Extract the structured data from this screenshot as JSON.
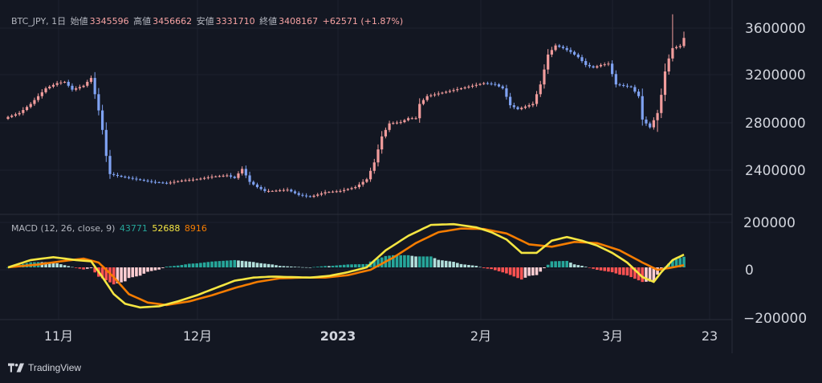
{
  "price_legend": {
    "symbol": "BTC_JPY, 1日",
    "open_label": "始値",
    "open": "3345596",
    "high_label": "高値",
    "high": "3456662",
    "low_label": "安値",
    "low": "3331710",
    "close_label": "終値",
    "close": "3408167",
    "change": "+62571 (+1.87%)"
  },
  "macd_legend": {
    "label": "MACD (12, 26, close, 9)",
    "hist": "43771",
    "macd": "52688",
    "signal": "8916"
  },
  "brand": "TradingView",
  "colors": {
    "background": "#131722",
    "up": "#f19c9c",
    "down": "#7fa2f2",
    "macd_line": "#f5e642",
    "signal_line": "#f57c00",
    "hist_pos_strong": "#26a69a",
    "hist_pos_weak": "#b2dfdb",
    "hist_neg_strong": "#ff5252",
    "hist_neg_weak": "#ffcdd2"
  },
  "chart_data": [
    {
      "type": "candlestick",
      "title": "BTC_JPY, 1日",
      "ylim": [
        2050000,
        3700000
      ],
      "y_ticks": [
        "3600000",
        "3200000",
        "2800000",
        "2400000"
      ],
      "x_tick_labels": [
        "11月",
        "12月",
        "2023",
        "2月",
        "3月",
        "23"
      ],
      "anchors": [
        [
          0,
          2800000
        ],
        [
          3,
          2830000
        ],
        [
          6,
          2900000
        ],
        [
          8,
          2960000
        ],
        [
          10,
          3020000
        ],
        [
          13,
          3060000
        ],
        [
          15,
          3070000
        ],
        [
          17,
          3010000
        ],
        [
          20,
          3040000
        ],
        [
          22,
          3100000
        ],
        [
          24,
          2850000
        ],
        [
          25,
          2700000
        ],
        [
          26,
          2500000
        ],
        [
          27,
          2360000
        ],
        [
          30,
          2340000
        ],
        [
          34,
          2320000
        ],
        [
          38,
          2300000
        ],
        [
          42,
          2290000
        ],
        [
          46,
          2310000
        ],
        [
          50,
          2320000
        ],
        [
          54,
          2340000
        ],
        [
          58,
          2350000
        ],
        [
          60,
          2330000
        ],
        [
          62,
          2400000
        ],
        [
          64,
          2300000
        ],
        [
          66,
          2260000
        ],
        [
          68,
          2230000
        ],
        [
          70,
          2230000
        ],
        [
          74,
          2240000
        ],
        [
          77,
          2200000
        ],
        [
          80,
          2185000
        ],
        [
          84,
          2220000
        ],
        [
          88,
          2230000
        ],
        [
          92,
          2260000
        ],
        [
          95,
          2320000
        ],
        [
          97,
          2450000
        ],
        [
          99,
          2650000
        ],
        [
          101,
          2750000
        ],
        [
          104,
          2760000
        ],
        [
          106,
          2790000
        ],
        [
          108,
          2790000
        ],
        [
          109,
          2900000
        ],
        [
          111,
          2960000
        ],
        [
          114,
          2980000
        ],
        [
          117,
          3000000
        ],
        [
          120,
          3020000
        ],
        [
          123,
          3040000
        ],
        [
          126,
          3060000
        ],
        [
          129,
          3050000
        ],
        [
          131,
          3020000
        ],
        [
          133,
          2890000
        ],
        [
          135,
          2860000
        ],
        [
          137,
          2880000
        ],
        [
          139,
          2900000
        ],
        [
          141,
          3050000
        ],
        [
          143,
          3280000
        ],
        [
          145,
          3350000
        ],
        [
          147,
          3330000
        ],
        [
          149,
          3300000
        ],
        [
          151,
          3260000
        ],
        [
          153,
          3200000
        ],
        [
          155,
          3180000
        ],
        [
          157,
          3200000
        ],
        [
          159,
          3210000
        ],
        [
          161,
          3050000
        ],
        [
          163,
          3040000
        ],
        [
          165,
          3030000
        ],
        [
          167,
          2960000
        ],
        [
          168,
          2780000
        ],
        [
          170,
          2720000
        ],
        [
          172,
          2830000
        ],
        [
          173,
          2970000
        ],
        [
          174,
          3150000
        ],
        [
          175,
          3250000
        ],
        [
          176,
          3330000
        ],
        [
          178,
          3345596
        ],
        [
          179,
          3408167
        ]
      ]
    },
    {
      "type": "macd",
      "title": "MACD (12, 26, close, 9)",
      "ylim": [
        -215000,
        215000
      ],
      "y_ticks": [
        "200000",
        "0",
        "−200000"
      ],
      "macd_anchors": [
        [
          0,
          0
        ],
        [
          6,
          30000
        ],
        [
          12,
          42000
        ],
        [
          18,
          30000
        ],
        [
          22,
          25000
        ],
        [
          25,
          -40000
        ],
        [
          28,
          -110000
        ],
        [
          31,
          -150000
        ],
        [
          35,
          -165000
        ],
        [
          40,
          -160000
        ],
        [
          45,
          -140000
        ],
        [
          50,
          -115000
        ],
        [
          55,
          -85000
        ],
        [
          60,
          -55000
        ],
        [
          65,
          -42000
        ],
        [
          70,
          -38000
        ],
        [
          75,
          -40000
        ],
        [
          80,
          -42000
        ],
        [
          85,
          -35000
        ],
        [
          90,
          -20000
        ],
        [
          95,
          0
        ],
        [
          100,
          70000
        ],
        [
          106,
          130000
        ],
        [
          112,
          175000
        ],
        [
          118,
          178000
        ],
        [
          124,
          165000
        ],
        [
          128,
          145000
        ],
        [
          132,
          115000
        ],
        [
          136,
          60000
        ],
        [
          140,
          60000
        ],
        [
          144,
          110000
        ],
        [
          148,
          125000
        ],
        [
          152,
          110000
        ],
        [
          156,
          90000
        ],
        [
          160,
          60000
        ],
        [
          164,
          20000
        ],
        [
          168,
          -40000
        ],
        [
          171,
          -60000
        ],
        [
          173,
          -20000
        ],
        [
          176,
          30000
        ],
        [
          179,
          52688
        ]
      ],
      "signal_anchors": [
        [
          0,
          0
        ],
        [
          8,
          12000
        ],
        [
          14,
          25000
        ],
        [
          20,
          36000
        ],
        [
          24,
          20000
        ],
        [
          28,
          -40000
        ],
        [
          32,
          -110000
        ],
        [
          37,
          -145000
        ],
        [
          42,
          -155000
        ],
        [
          48,
          -140000
        ],
        [
          54,
          -115000
        ],
        [
          60,
          -85000
        ],
        [
          66,
          -60000
        ],
        [
          72,
          -45000
        ],
        [
          78,
          -42000
        ],
        [
          84,
          -42000
        ],
        [
          90,
          -32000
        ],
        [
          96,
          -10000
        ],
        [
          102,
          40000
        ],
        [
          108,
          100000
        ],
        [
          114,
          145000
        ],
        [
          120,
          160000
        ],
        [
          126,
          158000
        ],
        [
          132,
          140000
        ],
        [
          138,
          95000
        ],
        [
          144,
          85000
        ],
        [
          150,
          105000
        ],
        [
          156,
          100000
        ],
        [
          162,
          70000
        ],
        [
          168,
          20000
        ],
        [
          172,
          -10000
        ],
        [
          176,
          0
        ],
        [
          179,
          8916
        ]
      ]
    }
  ]
}
